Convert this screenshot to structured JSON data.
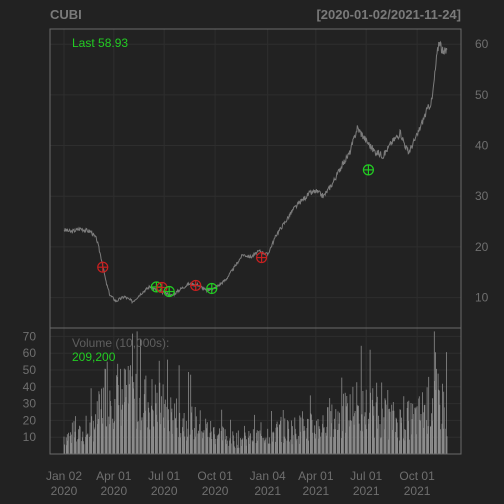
{
  "chart_data": {
    "type": "line",
    "symbol": "CUBI",
    "date_range": "[2020-01-02/2021-11-24]",
    "last_label": "Last 58.93",
    "volume_label": "Volume (10,000s):",
    "volume_last": "209,200",
    "x_tick_labels": [
      {
        "date": "2020-01-02",
        "line1": "Jan 02",
        "line2": "2020"
      },
      {
        "date": "2020-04-01",
        "line1": "Apr 01",
        "line2": "2020"
      },
      {
        "date": "2020-07-01",
        "line1": "Jul 01",
        "line2": "2020"
      },
      {
        "date": "2020-10-01",
        "line1": "Oct 01",
        "line2": "2020"
      },
      {
        "date": "2021-01-04",
        "line1": "Jan 04",
        "line2": "2021"
      },
      {
        "date": "2021-04-01",
        "line1": "Apr 01",
        "line2": "2021"
      },
      {
        "date": "2021-07-01",
        "line1": "Jul 01",
        "line2": "2021"
      },
      {
        "date": "2021-10-01",
        "line1": "Oct 01",
        "line2": "2021"
      }
    ],
    "price_axis": {
      "ticks": [
        10,
        20,
        30,
        40,
        50,
        60
      ],
      "ylim": [
        4,
        63
      ]
    },
    "volume_axis": {
      "ticks": [
        10,
        20,
        30,
        40,
        50,
        60,
        70
      ],
      "ylim": [
        0,
        75
      ]
    },
    "x_range": [
      "2020-01-02",
      "2021-11-24"
    ],
    "price_series": {
      "name": "",
      "points": [
        [
          "2020-01-02",
          23.4
        ],
        [
          "2020-01-15",
          23.0
        ],
        [
          "2020-02-01",
          23.6
        ],
        [
          "2020-02-20",
          23.0
        ],
        [
          "2020-03-01",
          21.5
        ],
        [
          "2020-03-10",
          17.5
        ],
        [
          "2020-03-18",
          13.0
        ],
        [
          "2020-03-25",
          10.5
        ],
        [
          "2020-04-05",
          9.3
        ],
        [
          "2020-04-20",
          10.2
        ],
        [
          "2020-05-05",
          9.2
        ],
        [
          "2020-05-20",
          10.8
        ],
        [
          "2020-06-05",
          12.2
        ],
        [
          "2020-06-20",
          11.3
        ],
        [
          "2020-07-01",
          11.0
        ],
        [
          "2020-07-15",
          10.4
        ],
        [
          "2020-08-01",
          11.8
        ],
        [
          "2020-08-15",
          12.7
        ],
        [
          "2020-09-01",
          12.5
        ],
        [
          "2020-09-15",
          11.4
        ],
        [
          "2020-10-01",
          11.9
        ],
        [
          "2020-10-20",
          13.5
        ],
        [
          "2020-11-05",
          16.0
        ],
        [
          "2020-11-20",
          18.5
        ],
        [
          "2020-12-05",
          18.0
        ],
        [
          "2020-12-20",
          19.2
        ],
        [
          "2021-01-04",
          18.5
        ],
        [
          "2021-01-20",
          22.5
        ],
        [
          "2021-02-05",
          25.0
        ],
        [
          "2021-02-20",
          27.5
        ],
        [
          "2021-03-05",
          29.0
        ],
        [
          "2021-03-20",
          30.5
        ],
        [
          "2021-04-01",
          31.0
        ],
        [
          "2021-04-15",
          30.0
        ],
        [
          "2021-05-01",
          32.5
        ],
        [
          "2021-05-15",
          35.5
        ],
        [
          "2021-06-01",
          38.5
        ],
        [
          "2021-06-15",
          43.5
        ],
        [
          "2021-07-01",
          41.0
        ],
        [
          "2021-07-15",
          39.0
        ],
        [
          "2021-08-01",
          38.0
        ],
        [
          "2021-08-15",
          40.5
        ],
        [
          "2021-09-01",
          42.5
        ],
        [
          "2021-09-15",
          38.5
        ],
        [
          "2021-10-01",
          42.0
        ],
        [
          "2021-10-15",
          46.0
        ],
        [
          "2021-10-28",
          49.0
        ],
        [
          "2021-11-05",
          57.0
        ],
        [
          "2021-11-10",
          61.0
        ],
        [
          "2021-11-17",
          58.0
        ],
        [
          "2021-11-24",
          58.93
        ]
      ]
    },
    "signals": [
      {
        "date": "2020-03-12",
        "price": 16.0,
        "kind": "sell",
        "color": "#c82020"
      },
      {
        "date": "2020-06-17",
        "price": 12.1,
        "kind": "buy",
        "color": "#22cc22"
      },
      {
        "date": "2020-06-27",
        "price": 12.0,
        "kind": "sell",
        "color": "#c82020"
      },
      {
        "date": "2020-07-10",
        "price": 11.2,
        "kind": "buy",
        "color": "#22cc22"
      },
      {
        "date": "2020-08-27",
        "price": 12.4,
        "kind": "sell",
        "color": "#c82020"
      },
      {
        "date": "2020-09-25",
        "price": 11.8,
        "kind": "buy",
        "color": "#22cc22"
      },
      {
        "date": "2020-12-24",
        "price": 17.9,
        "kind": "sell",
        "color": "#c82020"
      },
      {
        "date": "2021-07-05",
        "price": 35.2,
        "kind": "buy",
        "color": "#22cc22"
      }
    ],
    "volume_envelope": [
      [
        "2020-01-02",
        12
      ],
      [
        "2020-02-10",
        13
      ],
      [
        "2020-03-01",
        22
      ],
      [
        "2020-03-20",
        45
      ],
      [
        "2020-04-10",
        40
      ],
      [
        "2020-05-01",
        38
      ],
      [
        "2020-06-01",
        36
      ],
      [
        "2020-07-01",
        30
      ],
      [
        "2020-08-01",
        24
      ],
      [
        "2020-09-01",
        20
      ],
      [
        "2020-10-01",
        14
      ],
      [
        "2020-11-01",
        10
      ],
      [
        "2020-12-01",
        10
      ],
      [
        "2021-01-04",
        14
      ],
      [
        "2021-02-01",
        16
      ],
      [
        "2021-03-01",
        17
      ],
      [
        "2021-04-01",
        18
      ],
      [
        "2021-05-01",
        22
      ],
      [
        "2021-06-01",
        28
      ],
      [
        "2021-07-01",
        30
      ],
      [
        "2021-08-01",
        24
      ],
      [
        "2021-09-01",
        22
      ],
      [
        "2021-10-01",
        24
      ],
      [
        "2021-11-01",
        38
      ],
      [
        "2021-11-24",
        30
      ]
    ],
    "grid": true,
    "colors": {
      "background": "#222222",
      "panel_border": "#6a6a6a",
      "grid": "#2e2e2e",
      "axis_text": "#6f6f6f",
      "title_text": "#7a7a7a",
      "price_line": "#7c7c7c",
      "volume_bar": "#8c8c8c",
      "last_text": "#22cc22",
      "volume_label_text": "#5f5f5f",
      "volume_value_text": "#22cc22"
    }
  }
}
